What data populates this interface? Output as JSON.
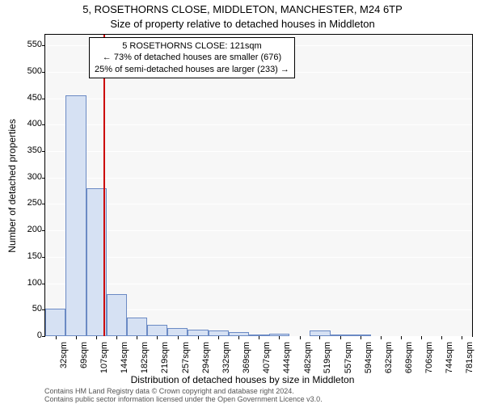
{
  "title_line1": "5, ROSETHORNS CLOSE, MIDDLETON, MANCHESTER, M24 6TP",
  "title_line2": "Size of property relative to detached houses in Middleton",
  "ylabel": "Number of detached properties",
  "xlabel": "Distribution of detached houses by size in Middleton",
  "annotation": {
    "line1": "5 ROSETHORNS CLOSE: 121sqm",
    "line2": "← 73% of detached houses are smaller (676)",
    "line3": "25% of semi-detached houses are larger (233) →"
  },
  "footer": {
    "line1": "Contains HM Land Registry data © Crown copyright and database right 2024.",
    "line2": "Contains public sector information licensed under the Open Government Licence v3.0."
  },
  "chart": {
    "type": "histogram",
    "plot_bg": "#f7f7f7",
    "grid_color": "#ffffff",
    "bar_fill": "#d6e1f3",
    "bar_border": "#6b8ac4",
    "marker_color": "#cc0000",
    "marker_x": 121,
    "ylim": [
      0,
      570
    ],
    "ytick_step": 50,
    "yticks": [
      0,
      50,
      100,
      150,
      200,
      250,
      300,
      350,
      400,
      450,
      500,
      550
    ],
    "xlim": [
      13,
      800
    ],
    "xticks": [
      32,
      69,
      107,
      144,
      182,
      219,
      257,
      294,
      332,
      369,
      407,
      444,
      482,
      519,
      557,
      594,
      632,
      669,
      706,
      744,
      781
    ],
    "xtick_suffix": "sqm",
    "bins": [
      {
        "x": 13.5,
        "width": 37.5,
        "count": 52
      },
      {
        "x": 51,
        "width": 37.5,
        "count": 455
      },
      {
        "x": 88.5,
        "width": 37.5,
        "count": 280
      },
      {
        "x": 126,
        "width": 37.5,
        "count": 80
      },
      {
        "x": 163.5,
        "width": 37.5,
        "count": 35
      },
      {
        "x": 201,
        "width": 37.5,
        "count": 22
      },
      {
        "x": 238.5,
        "width": 37.5,
        "count": 15
      },
      {
        "x": 276,
        "width": 37.5,
        "count": 12
      },
      {
        "x": 313.5,
        "width": 37.5,
        "count": 10
      },
      {
        "x": 351,
        "width": 37.5,
        "count": 8
      },
      {
        "x": 388.5,
        "width": 37.5,
        "count": 3
      },
      {
        "x": 426,
        "width": 37.5,
        "count": 4
      },
      {
        "x": 463.5,
        "width": 37.5,
        "count": 0
      },
      {
        "x": 501,
        "width": 37.5,
        "count": 10
      },
      {
        "x": 538.5,
        "width": 37.5,
        "count": 2
      },
      {
        "x": 576,
        "width": 37.5,
        "count": 2
      },
      {
        "x": 613.5,
        "width": 37.5,
        "count": 0
      },
      {
        "x": 651,
        "width": 37.5,
        "count": 0
      },
      {
        "x": 688.5,
        "width": 37.5,
        "count": 0
      },
      {
        "x": 726,
        "width": 37.5,
        "count": 0
      },
      {
        "x": 763.5,
        "width": 37.5,
        "count": 0
      }
    ]
  }
}
